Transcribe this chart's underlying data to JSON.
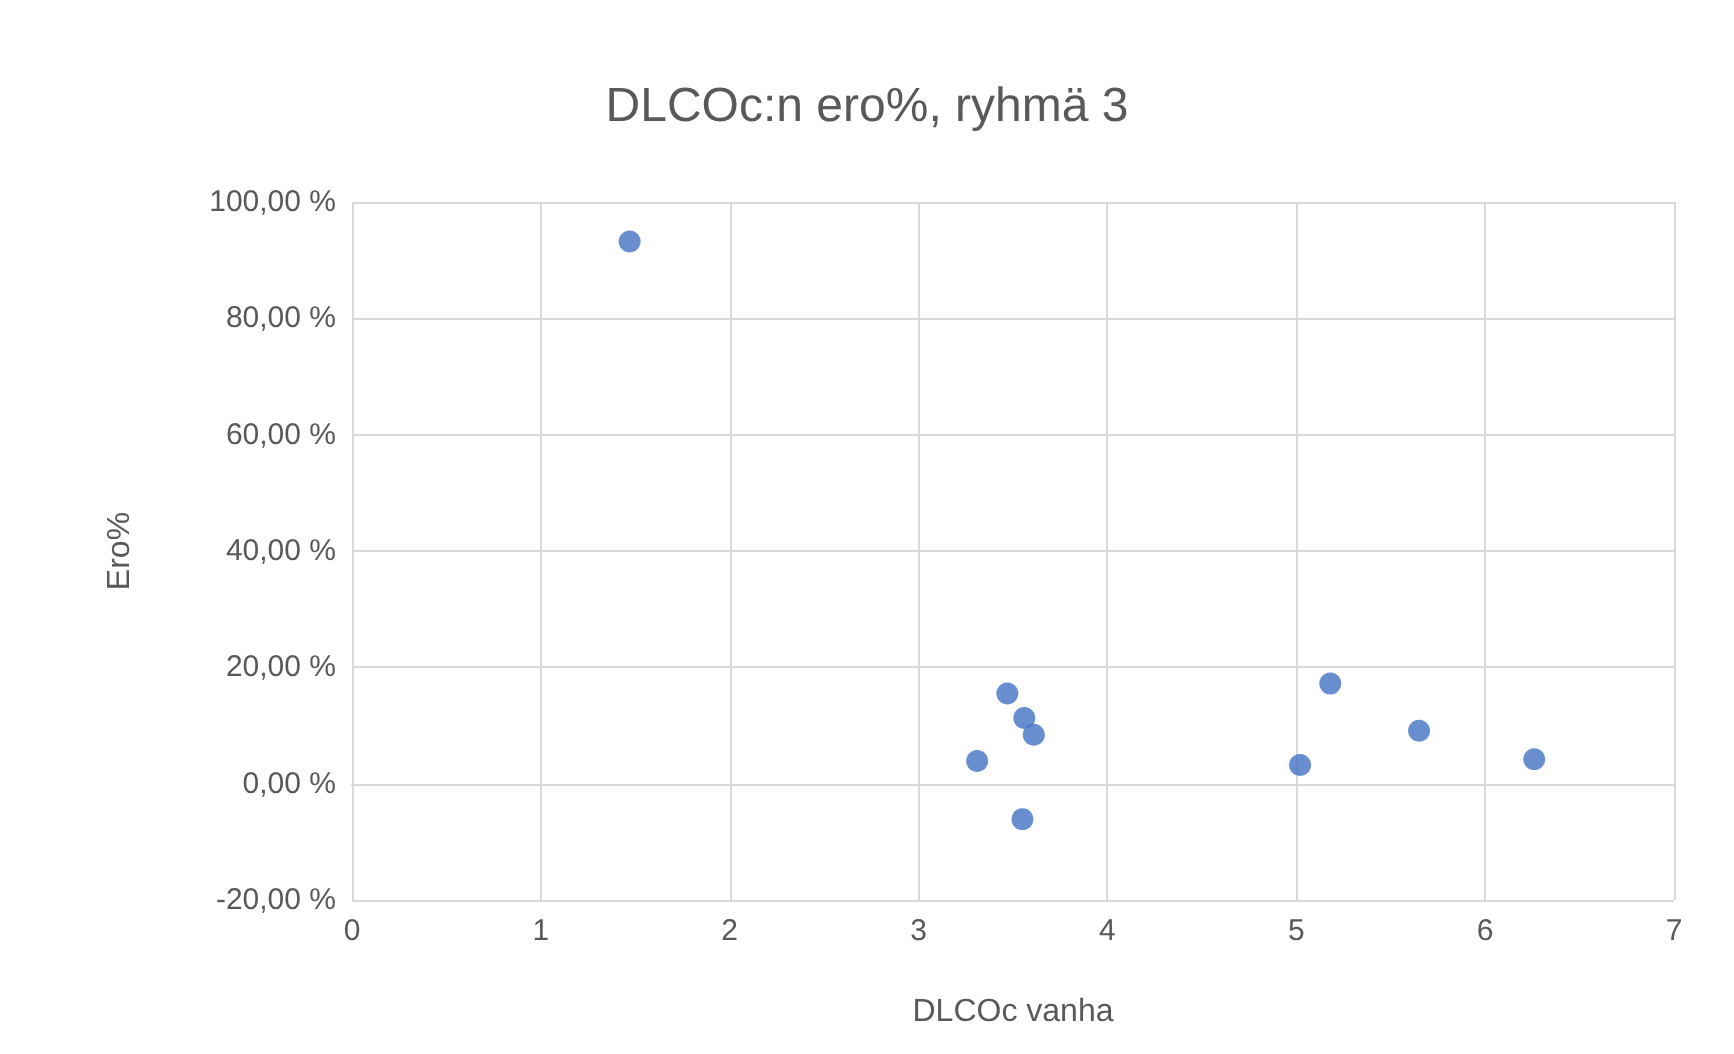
{
  "chart_data": {
    "type": "scatter",
    "title": "DLCOc:n ero%, ryhmä 3",
    "xlabel": "DLCOc vanha",
    "ylabel": "Ero%",
    "x": [
      1.47,
      3.47,
      3.31,
      3.56,
      3.61,
      3.55,
      5.02,
      5.18,
      5.65,
      6.26
    ],
    "values": [
      93.2,
      15.5,
      3.9,
      11.3,
      8.4,
      -6.1,
      3.2,
      17.2,
      9.1,
      4.2
    ],
    "color": "#4472c4",
    "marker": "circle",
    "grid": true,
    "xlim": [
      0,
      7
    ],
    "xticks": [
      0,
      1,
      2,
      3,
      4,
      5,
      6,
      7
    ],
    "ylim": [
      -20,
      100
    ],
    "yticks": [
      {
        "value": -20,
        "label": "-20,00 %"
      },
      {
        "value": 0,
        "label": "0,00 %"
      },
      {
        "value": 20,
        "label": "20,00 %"
      },
      {
        "value": 40,
        "label": "40,00 %"
      },
      {
        "value": 60,
        "label": "60,00 %"
      },
      {
        "value": 80,
        "label": "80,00 %"
      },
      {
        "value": 100,
        "label": "100,00 %"
      }
    ]
  }
}
